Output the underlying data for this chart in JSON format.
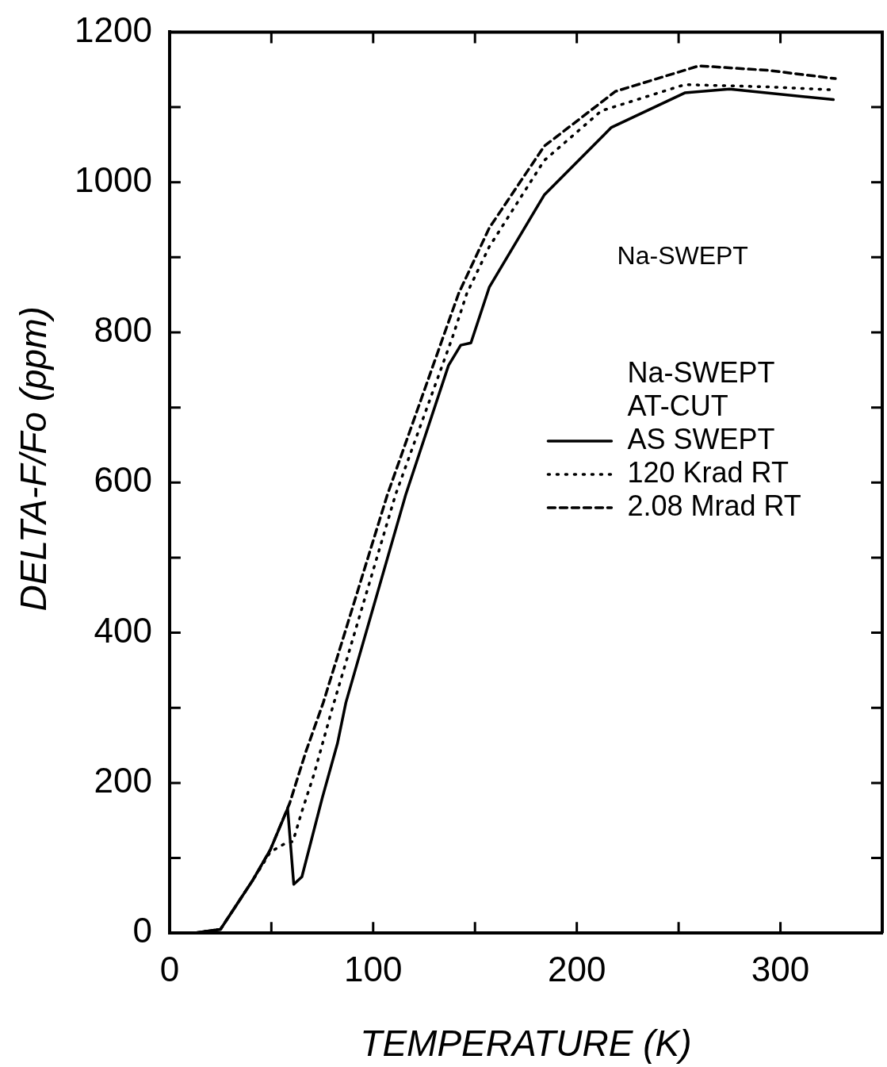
{
  "chart_data": {
    "type": "line",
    "xlabel": "TEMPERATURE (K)",
    "ylabel": "DELTA-F/Fo (ppm)",
    "legend_title": "Na-SWEPT\nAT-CUT",
    "legend": "right",
    "annotations": [
      "Na-SWEPT"
    ],
    "xlim": [
      0,
      350
    ],
    "ylim": [
      0,
      1200
    ],
    "xticks": [
      0,
      {
        "value": 50,
        "label": null
      },
      100,
      {
        "value": 150,
        "label": null
      },
      200,
      {
        "value": 250,
        "label": null
      },
      300
    ],
    "yticks": [
      0,
      {
        "value": 100,
        "label": null
      },
      200,
      {
        "value": 300,
        "label": null
      },
      400,
      {
        "value": 500,
        "label": null
      },
      600,
      {
        "value": 700,
        "label": null
      },
      800,
      {
        "value": 900,
        "label": null
      },
      1000,
      {
        "value": 1100,
        "label": null
      },
      1200
    ],
    "series": [
      {
        "name": "AS SWEPT",
        "color": "#000000",
        "line_style": "solid",
        "x": [
          0,
          12,
          25,
          41,
          49.5,
          58,
          61,
          65,
          75,
          82.5,
          86.6,
          116,
          137,
          143,
          148,
          157,
          184,
          217,
          253,
          275,
          326
        ],
        "values": [
          0,
          0,
          5,
          71,
          111,
          166,
          65,
          75,
          180,
          253,
          307,
          584,
          756,
          783,
          786,
          860,
          983,
          1073,
          1119,
          1124,
          1110
        ]
      },
      {
        "name": "120 Krad RT",
        "color": "#000000",
        "line_style": "dotted",
        "x": [
          0,
          12,
          25,
          41,
          49.5,
          56.5,
          60.6,
          65,
          71,
          80,
          111,
          139,
          146,
          157,
          184,
          212,
          253,
          294,
          326
        ],
        "values": [
          0,
          0,
          5,
          71,
          108,
          119,
          122,
          162,
          212,
          300,
          584,
          794,
          852,
          914,
          1029,
          1095,
          1130,
          1127,
          1123
        ]
      },
      {
        "name": "2.08 Mrad RT",
        "color": "#000000",
        "line_style": "dashed",
        "x": [
          0,
          12,
          25,
          41,
          49.5,
          59,
          67,
          75.5,
          107,
          134,
          142,
          157,
          184,
          219,
          260,
          294,
          327
        ],
        "values": [
          0,
          0,
          5,
          71,
          111,
          173,
          242,
          307,
          584,
          791,
          852,
          939,
          1048,
          1121,
          1155,
          1149,
          1138
        ]
      }
    ]
  }
}
